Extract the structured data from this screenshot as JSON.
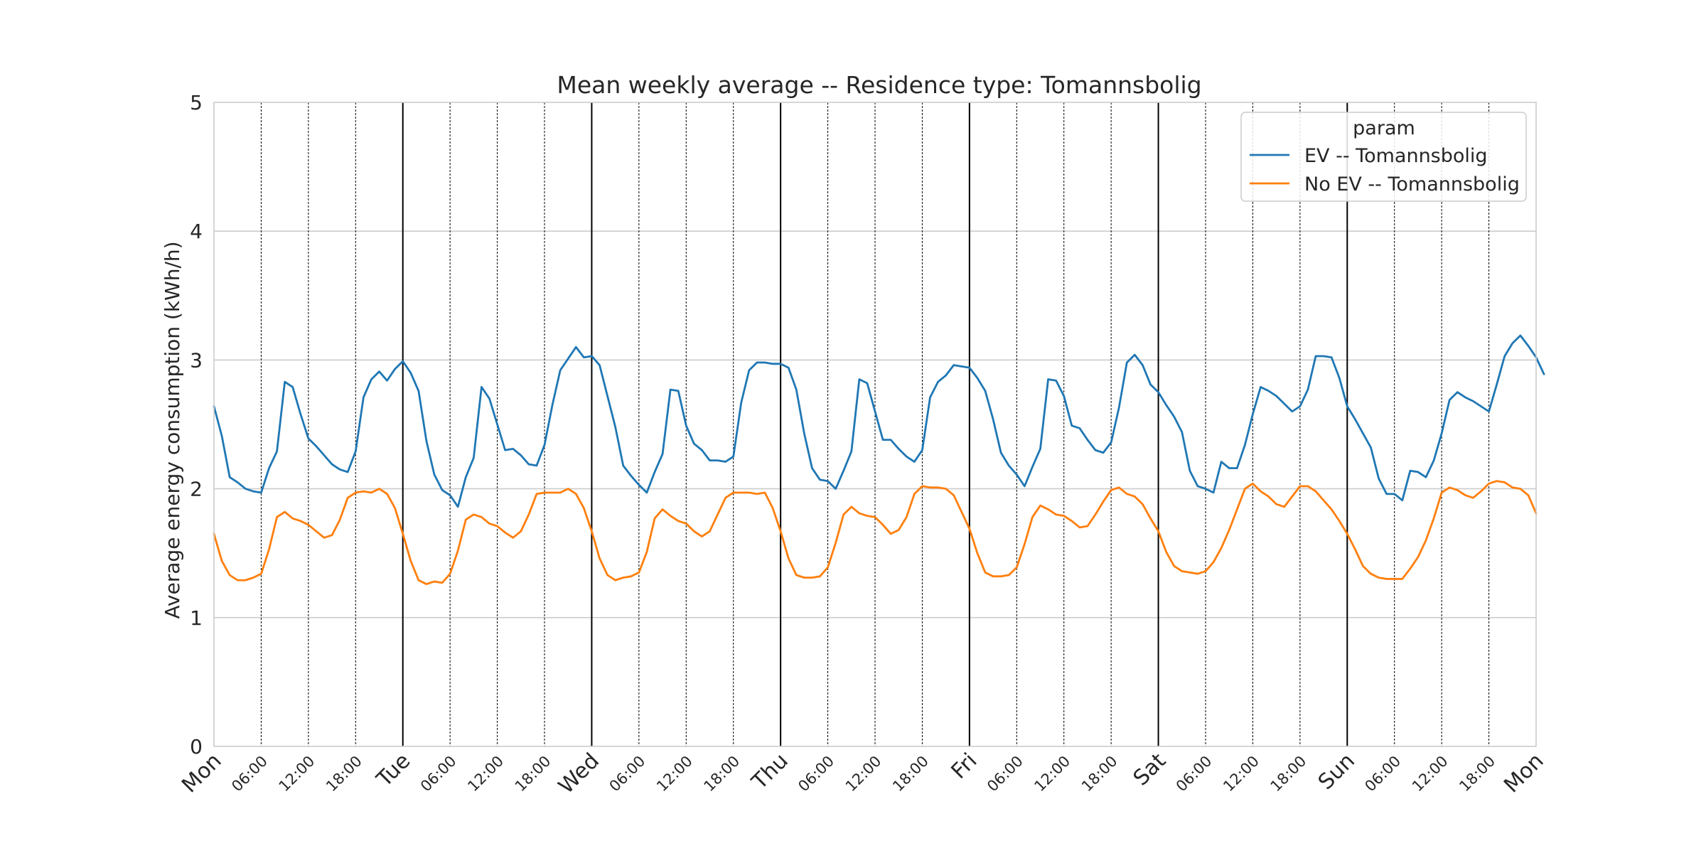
{
  "chart_data": {
    "type": "line",
    "title": "Mean weekly average -- Residence type: Tomannsbolig",
    "xlabel": "",
    "ylabel": "Average energy consumption (kWh/h)",
    "ylim": [
      0,
      5
    ],
    "yticks": [
      0,
      1,
      2,
      3,
      4,
      5
    ],
    "xlim": [
      0,
      168
    ],
    "x_unit": "hours since start of week (Mon 00:00)",
    "x_major_ticks": [
      {
        "x": 0,
        "label": "Mon"
      },
      {
        "x": 24,
        "label": "Tue"
      },
      {
        "x": 48,
        "label": "Wed"
      },
      {
        "x": 72,
        "label": "Thu"
      },
      {
        "x": 96,
        "label": "Fri"
      },
      {
        "x": 120,
        "label": "Sat"
      },
      {
        "x": 144,
        "label": "Sun"
      },
      {
        "x": 168,
        "label": "Mon"
      }
    ],
    "x_minor_labels": [
      "06:00",
      "12:00",
      "18:00"
    ],
    "grid": true,
    "legend": {
      "title": "param",
      "position": "top-right"
    },
    "series": [
      {
        "name": "EV -- Tomannsbolig",
        "color": "#1f77b4",
        "values": [
          2.64,
          2.41,
          2.09,
          2.05,
          2.0,
          1.98,
          1.97,
          2.16,
          2.29,
          2.83,
          2.79,
          2.58,
          2.39,
          2.33,
          2.26,
          2.19,
          2.15,
          2.13,
          2.29,
          2.71,
          2.85,
          2.91,
          2.84,
          2.93,
          2.99,
          2.9,
          2.76,
          2.37,
          2.11,
          1.99,
          1.95,
          1.86,
          2.09,
          2.24,
          2.79,
          2.7,
          2.5,
          2.3,
          2.31,
          2.26,
          2.19,
          2.18,
          2.34,
          2.65,
          2.92,
          3.01,
          3.1,
          3.02,
          3.03,
          2.96,
          2.72,
          2.48,
          2.18,
          2.1,
          2.03,
          1.97,
          2.13,
          2.27,
          2.77,
          2.76,
          2.49,
          2.35,
          2.3,
          2.22,
          2.22,
          2.21,
          2.25,
          2.67,
          2.92,
          2.98,
          2.98,
          2.97,
          2.97,
          2.94,
          2.77,
          2.43,
          2.16,
          2.07,
          2.06,
          2.0,
          2.14,
          2.29,
          2.85,
          2.82,
          2.6,
          2.38,
          2.38,
          2.31,
          2.25,
          2.21,
          2.3,
          2.71,
          2.83,
          2.88,
          2.96,
          2.95,
          2.94,
          2.86,
          2.76,
          2.54,
          2.28,
          2.18,
          2.11,
          2.02,
          2.17,
          2.31,
          2.85,
          2.84,
          2.72,
          2.49,
          2.47,
          2.38,
          2.3,
          2.28,
          2.36,
          2.63,
          2.98,
          3.04,
          2.96,
          2.81,
          2.75,
          2.65,
          2.56,
          2.44,
          2.14,
          2.02,
          2.0,
          1.97,
          2.21,
          2.16,
          2.16,
          2.34,
          2.58,
          2.79,
          2.76,
          2.72,
          2.66,
          2.6,
          2.64,
          2.77,
          3.03,
          3.03,
          3.02,
          2.86,
          2.64,
          2.54,
          2.43,
          2.32,
          2.08,
          1.96,
          1.96,
          1.91,
          2.14,
          2.13,
          2.09,
          2.22,
          2.43,
          2.69,
          2.75,
          2.71,
          2.68,
          2.64,
          2.6,
          2.81,
          3.03,
          3.13,
          3.19,
          3.11,
          3.02,
          2.89
        ]
      },
      {
        "name": "No EV -- Tomannsbolig",
        "color": "#ff7f0e",
        "values": [
          1.65,
          1.44,
          1.33,
          1.29,
          1.29,
          1.31,
          1.34,
          1.53,
          1.78,
          1.82,
          1.77,
          1.75,
          1.72,
          1.67,
          1.62,
          1.64,
          1.76,
          1.93,
          1.97,
          1.98,
          1.97,
          2.0,
          1.96,
          1.85,
          1.65,
          1.44,
          1.29,
          1.26,
          1.28,
          1.27,
          1.34,
          1.52,
          1.76,
          1.8,
          1.78,
          1.73,
          1.71,
          1.66,
          1.62,
          1.67,
          1.8,
          1.96,
          1.97,
          1.97,
          1.97,
          2.0,
          1.96,
          1.85,
          1.67,
          1.46,
          1.33,
          1.29,
          1.31,
          1.32,
          1.35,
          1.51,
          1.77,
          1.84,
          1.79,
          1.75,
          1.73,
          1.67,
          1.63,
          1.67,
          1.8,
          1.93,
          1.97,
          1.97,
          1.97,
          1.96,
          1.97,
          1.85,
          1.67,
          1.46,
          1.33,
          1.31,
          1.31,
          1.32,
          1.39,
          1.58,
          1.8,
          1.86,
          1.81,
          1.79,
          1.78,
          1.72,
          1.65,
          1.68,
          1.78,
          1.96,
          2.02,
          2.01,
          2.01,
          2.0,
          1.95,
          1.82,
          1.69,
          1.5,
          1.35,
          1.32,
          1.32,
          1.33,
          1.39,
          1.57,
          1.78,
          1.87,
          1.84,
          1.8,
          1.79,
          1.75,
          1.7,
          1.71,
          1.8,
          1.9,
          1.99,
          2.01,
          1.96,
          1.94,
          1.88,
          1.77,
          1.67,
          1.51,
          1.4,
          1.36,
          1.35,
          1.34,
          1.36,
          1.43,
          1.54,
          1.68,
          1.84,
          2.0,
          2.04,
          1.98,
          1.94,
          1.88,
          1.86,
          1.94,
          2.02,
          2.02,
          1.98,
          1.91,
          1.84,
          1.75,
          1.65,
          1.53,
          1.4,
          1.34,
          1.31,
          1.3,
          1.3,
          1.3,
          1.38,
          1.47,
          1.6,
          1.77,
          1.97,
          2.01,
          1.99,
          1.95,
          1.93,
          1.98,
          2.04,
          2.06,
          2.05,
          2.01,
          2.0,
          1.95,
          1.81
        ]
      }
    ]
  }
}
